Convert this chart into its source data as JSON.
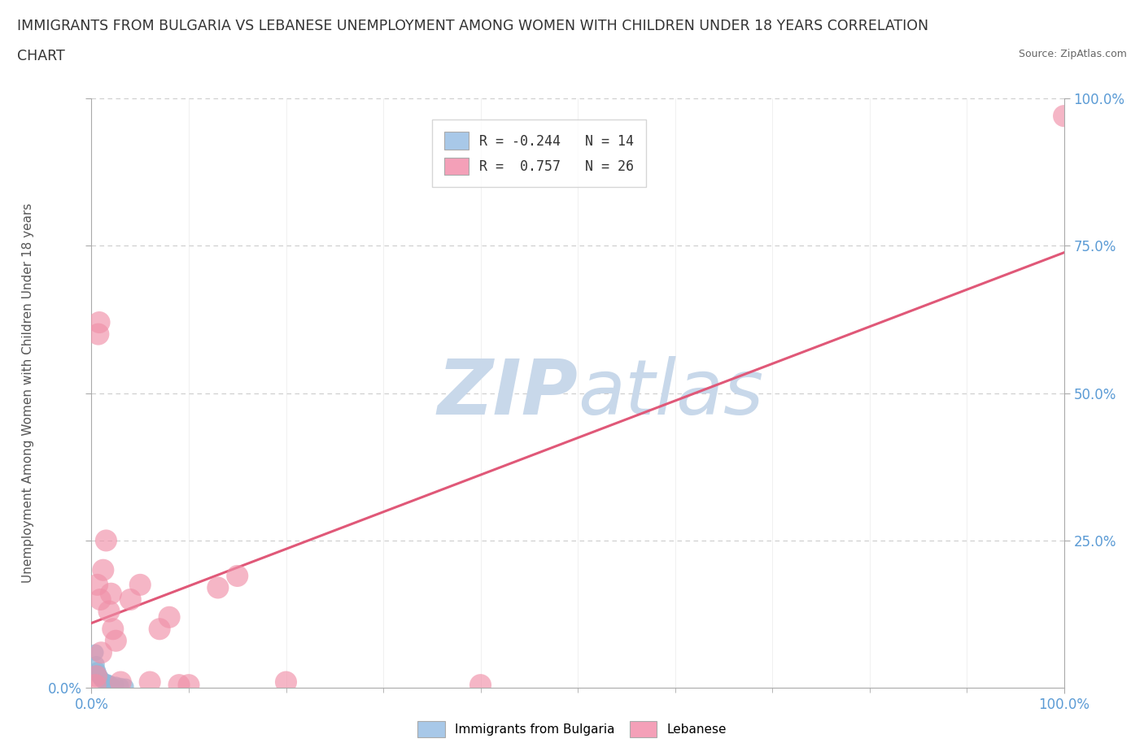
{
  "title_line1": "IMMIGRANTS FROM BULGARIA VS LEBANESE UNEMPLOYMENT AMONG WOMEN WITH CHILDREN UNDER 18 YEARS CORRELATION",
  "title_line2": "CHART",
  "source": "Source: ZipAtlas.com",
  "ylabel": "Unemployment Among Women with Children Under 18 years",
  "legend_entries": [
    {
      "label": "Immigrants from Bulgaria",
      "color": "#a8c8e8",
      "R": -0.244,
      "N": 14
    },
    {
      "label": "Lebanese",
      "color": "#f4a0b8",
      "R": 0.757,
      "N": 26
    }
  ],
  "bulgaria_points": [
    [
      0.004,
      0.06
    ],
    [
      0.005,
      0.04
    ],
    [
      0.006,
      0.03
    ],
    [
      0.007,
      0.025
    ],
    [
      0.008,
      0.02
    ],
    [
      0.009,
      0.018
    ],
    [
      0.01,
      0.015
    ],
    [
      0.012,
      0.012
    ],
    [
      0.015,
      0.01
    ],
    [
      0.018,
      0.008
    ],
    [
      0.02,
      0.006
    ],
    [
      0.025,
      0.005
    ],
    [
      0.03,
      0.003
    ],
    [
      0.035,
      0.002
    ]
  ],
  "lebanese_points": [
    [
      0.004,
      0.005
    ],
    [
      0.005,
      0.02
    ],
    [
      0.006,
      0.175
    ],
    [
      0.007,
      0.6
    ],
    [
      0.008,
      0.62
    ],
    [
      0.009,
      0.15
    ],
    [
      0.01,
      0.06
    ],
    [
      0.012,
      0.2
    ],
    [
      0.015,
      0.25
    ],
    [
      0.018,
      0.13
    ],
    [
      0.02,
      0.16
    ],
    [
      0.022,
      0.1
    ],
    [
      0.025,
      0.08
    ],
    [
      0.03,
      0.01
    ],
    [
      0.04,
      0.15
    ],
    [
      0.05,
      0.175
    ],
    [
      0.06,
      0.01
    ],
    [
      0.07,
      0.1
    ],
    [
      0.08,
      0.12
    ],
    [
      0.09,
      0.005
    ],
    [
      0.1,
      0.005
    ],
    [
      0.13,
      0.17
    ],
    [
      0.15,
      0.19
    ],
    [
      0.2,
      0.01
    ],
    [
      0.4,
      0.005
    ],
    [
      1.0,
      0.97
    ]
  ],
  "bulgaria_line_color": "#90b8d8",
  "lebanese_line_color": "#e05878",
  "scatter_bulgaria_color": "#90b8d8",
  "scatter_lebanese_color": "#f090a8",
  "watermark_line1": "ZIP",
  "watermark_line2": "atlas",
  "watermark_color": "#c8d8ea",
  "background_color": "#ffffff",
  "grid_color": "#cccccc",
  "axis_color": "#aaaaaa",
  "title_color": "#333333",
  "legend_box_color_bulgaria": "#a8c8e8",
  "legend_box_color_lebanese": "#f4a0b8",
  "tick_label_color": "#5b9bd5",
  "y_ticks": [
    0.0,
    0.25,
    0.5,
    0.75,
    1.0
  ],
  "y_tick_labels_left": [
    "0.0%",
    "",
    "",
    "",
    ""
  ],
  "y_tick_labels_right": [
    "",
    "25.0%",
    "50.0%",
    "75.0%",
    "100.0%"
  ],
  "x_ticks": [
    0.0,
    1.0
  ],
  "x_tick_labels": [
    "0.0%",
    "100.0%"
  ]
}
